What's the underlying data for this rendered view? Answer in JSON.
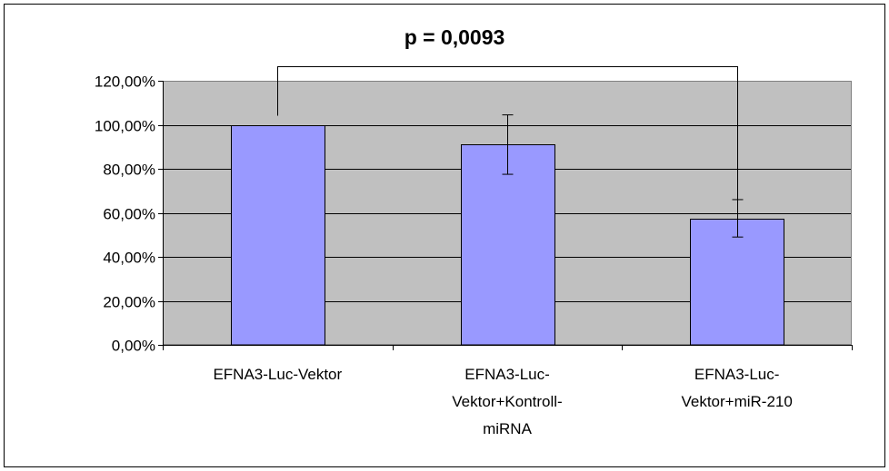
{
  "chart_data": {
    "type": "bar",
    "title": "p = 0,0093",
    "categories": [
      [
        "EFNA3-Luc-Vektor"
      ],
      [
        "EFNA3-Luc-",
        "Vektor+Kontroll-",
        "miRNA"
      ],
      [
        "EFNA3-Luc-",
        "Vektor+miR-210"
      ]
    ],
    "series": [
      {
        "values": [
          100,
          91,
          57.5
        ],
        "errors": [
          0,
          13.5,
          8.5
        ]
      }
    ],
    "ylim": [
      0,
      120
    ],
    "yticks": [
      "0,00%",
      "20,00%",
      "40,00%",
      "60,00%",
      "80,00%",
      "100,00%",
      "120,00%"
    ],
    "ytick_values": [
      0,
      20,
      40,
      60,
      80,
      100,
      120
    ],
    "grid": true,
    "significance": {
      "from": 0,
      "to": 2,
      "label": "p = 0,0093"
    },
    "colors": {
      "bar": "#9999ff",
      "bar_border": "#000000",
      "plot_bg": "#c0c0c0",
      "grid": "#000000",
      "frame": "#000000"
    }
  }
}
